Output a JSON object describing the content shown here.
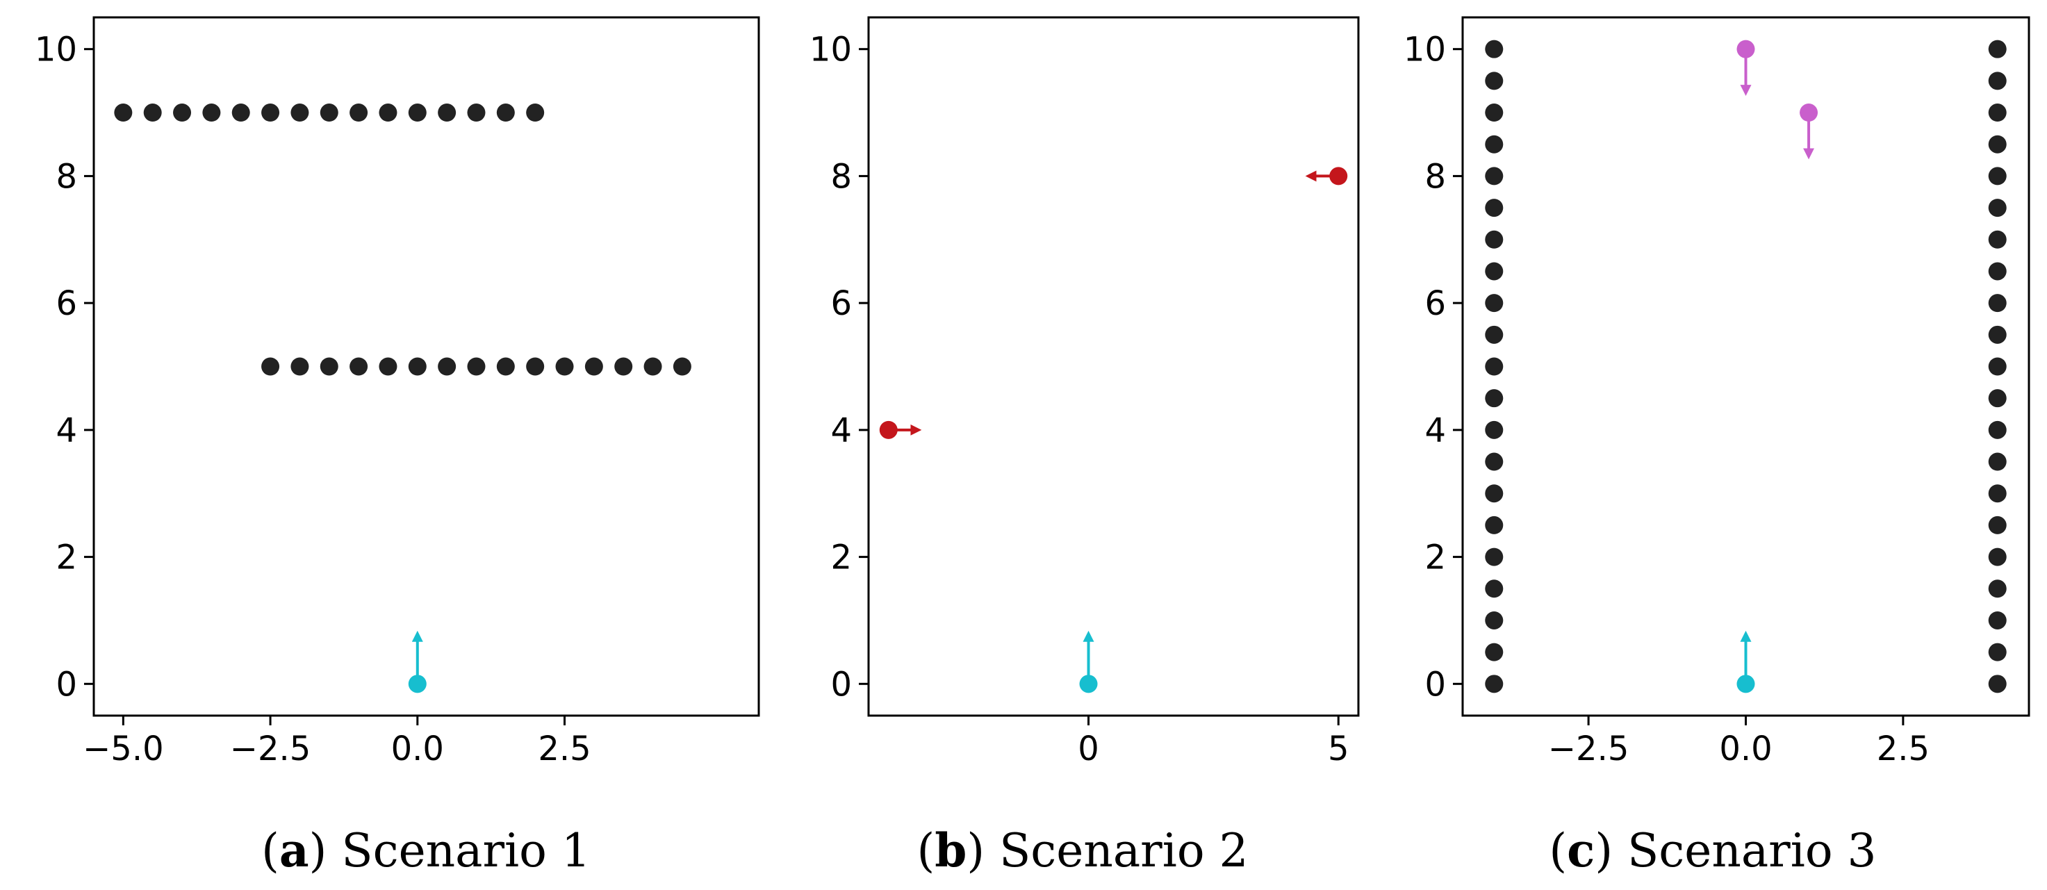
{
  "colors": {
    "obstacle": "#222222",
    "robot": "#17becf",
    "agent_b": "#c4161c",
    "agent_c": "#c95fcc",
    "axis": "#000000"
  },
  "chart_data": [
    {
      "type": "scatter",
      "caption": {
        "letter": "a",
        "text": "Scenario 1"
      },
      "xlim": [
        -5.5,
        5.8
      ],
      "ylim": [
        -0.5,
        10.5
      ],
      "xticks": [
        -5.0,
        -2.5,
        0.0,
        2.5
      ],
      "xtick_labels": [
        "−5.0",
        "−2.5",
        "0.0",
        "2.5"
      ],
      "yticks": [
        0,
        2,
        4,
        6,
        8,
        10
      ],
      "ytick_labels": [
        "0",
        "2",
        "4",
        "6",
        "8",
        "10"
      ],
      "series": [
        {
          "role": "obstacles",
          "color": "#222222",
          "points": [
            [
              -5.0,
              9
            ],
            [
              -4.5,
              9
            ],
            [
              -4.0,
              9
            ],
            [
              -3.5,
              9
            ],
            [
              -3.0,
              9
            ],
            [
              -2.5,
              9
            ],
            [
              -2.0,
              9
            ],
            [
              -1.5,
              9
            ],
            [
              -1.0,
              9
            ],
            [
              -0.5,
              9
            ],
            [
              0.0,
              9
            ],
            [
              0.5,
              9
            ],
            [
              1.0,
              9
            ],
            [
              1.5,
              9
            ],
            [
              2.0,
              9
            ],
            [
              -2.5,
              5
            ],
            [
              -2.0,
              5
            ],
            [
              -1.5,
              5
            ],
            [
              -1.0,
              5
            ],
            [
              -0.5,
              5
            ],
            [
              0.0,
              5
            ],
            [
              0.5,
              5
            ],
            [
              1.0,
              5
            ],
            [
              1.5,
              5
            ],
            [
              2.0,
              5
            ],
            [
              2.5,
              5
            ],
            [
              3.0,
              5
            ],
            [
              3.5,
              5
            ],
            [
              4.0,
              5
            ],
            [
              4.5,
              5
            ]
          ]
        },
        {
          "role": "robot",
          "color": "#17becf",
          "points": [
            [
              0.0,
              0.0
            ]
          ],
          "arrows": [
            [
              0.0,
              0.0,
              0.0,
              0.75
            ]
          ]
        }
      ]
    },
    {
      "type": "scatter",
      "caption": {
        "letter": "b",
        "text": "Scenario 2"
      },
      "xlim": [
        -4.4,
        5.4
      ],
      "ylim": [
        -0.5,
        10.5
      ],
      "xticks": [
        0,
        5
      ],
      "xtick_labels": [
        "0",
        "5"
      ],
      "yticks": [
        0,
        2,
        4,
        6,
        8,
        10
      ],
      "ytick_labels": [
        "0",
        "2",
        "4",
        "6",
        "8",
        "10"
      ],
      "series": [
        {
          "role": "agents",
          "color": "#c4161c",
          "points": [
            [
              -4.0,
              4.0
            ],
            [
              5.0,
              8.0
            ]
          ],
          "arrows": [
            [
              -4.0,
              4.0,
              0.55,
              0.0
            ],
            [
              5.0,
              8.0,
              -0.55,
              0.0
            ]
          ]
        },
        {
          "role": "robot",
          "color": "#17becf",
          "points": [
            [
              0.0,
              0.0
            ]
          ],
          "arrows": [
            [
              0.0,
              0.0,
              0.0,
              0.75
            ]
          ]
        }
      ]
    },
    {
      "type": "scatter",
      "caption": {
        "letter": "c",
        "text": "Scenario 3"
      },
      "xlim": [
        -4.5,
        4.5
      ],
      "ylim": [
        -0.5,
        10.5
      ],
      "xticks": [
        -2.5,
        0.0,
        2.5
      ],
      "xtick_labels": [
        "−2.5",
        "0.0",
        "2.5"
      ],
      "yticks": [
        0,
        2,
        4,
        6,
        8,
        10
      ],
      "ytick_labels": [
        "0",
        "2",
        "4",
        "6",
        "8",
        "10"
      ],
      "series": [
        {
          "role": "obstacles",
          "color": "#222222",
          "points": [
            [
              -4,
              0
            ],
            [
              -4,
              0.5
            ],
            [
              -4,
              1
            ],
            [
              -4,
              1.5
            ],
            [
              -4,
              2
            ],
            [
              -4,
              2.5
            ],
            [
              -4,
              3
            ],
            [
              -4,
              3.5
            ],
            [
              -4,
              4
            ],
            [
              -4,
              4.5
            ],
            [
              -4,
              5
            ],
            [
              -4,
              5.5
            ],
            [
              -4,
              6
            ],
            [
              -4,
              6.5
            ],
            [
              -4,
              7
            ],
            [
              -4,
              7.5
            ],
            [
              -4,
              8
            ],
            [
              -4,
              8.5
            ],
            [
              -4,
              9
            ],
            [
              -4,
              9.5
            ],
            [
              -4,
              10
            ],
            [
              4,
              0
            ],
            [
              4,
              0.5
            ],
            [
              4,
              1
            ],
            [
              4,
              1.5
            ],
            [
              4,
              2
            ],
            [
              4,
              2.5
            ],
            [
              4,
              3
            ],
            [
              4,
              3.5
            ],
            [
              4,
              4
            ],
            [
              4,
              4.5
            ],
            [
              4,
              5
            ],
            [
              4,
              5.5
            ],
            [
              4,
              6
            ],
            [
              4,
              6.5
            ],
            [
              4,
              7
            ],
            [
              4,
              7.5
            ],
            [
              4,
              8
            ],
            [
              4,
              8.5
            ],
            [
              4,
              9
            ],
            [
              4,
              9.5
            ],
            [
              4,
              10
            ]
          ]
        },
        {
          "role": "agents",
          "color": "#c95fcc",
          "points": [
            [
              0.0,
              10.0
            ],
            [
              1.0,
              9.0
            ]
          ],
          "arrows": [
            [
              0.0,
              10.0,
              0.0,
              -0.65
            ],
            [
              1.0,
              9.0,
              0.0,
              -0.65
            ]
          ]
        },
        {
          "role": "robot",
          "color": "#17becf",
          "points": [
            [
              0.0,
              0.0
            ]
          ],
          "arrows": [
            [
              0.0,
              0.0,
              0.0,
              0.75
            ]
          ]
        }
      ]
    }
  ]
}
